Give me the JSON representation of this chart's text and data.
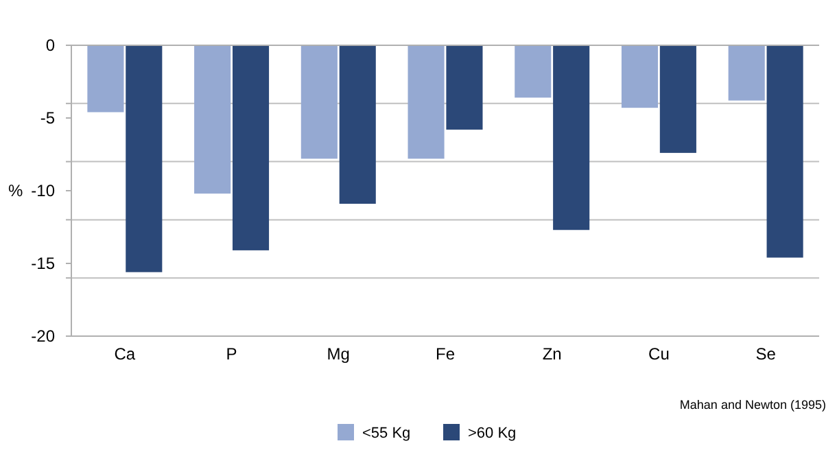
{
  "chart_data": {
    "type": "bar",
    "ylabel": "%",
    "categories": [
      "Ca",
      "P",
      "Mg",
      "Fe",
      "Zn",
      "Cu",
      "Se"
    ],
    "series": [
      {
        "name": "<55 Kg",
        "color": "#95a9d2",
        "values": [
          -4.6,
          -10.2,
          -7.8,
          -7.8,
          -3.6,
          -4.3,
          -3.8
        ]
      },
      {
        "name": ">60 Kg",
        "color": "#2b4878",
        "values": [
          -15.6,
          -14.1,
          -10.9,
          -5.8,
          -12.7,
          -7.4,
          -14.6
        ]
      }
    ],
    "ylim": [
      -20,
      0
    ],
    "yticks": [
      0,
      {
        "value": -4,
        "label": null
      },
      -5,
      {
        "value": -8,
        "label": null
      },
      -10,
      {
        "value": -12,
        "label": null
      },
      -15,
      {
        "value": -16,
        "label": null
      },
      -20
    ],
    "grid": "y",
    "legend": "bottom",
    "annotations": [
      "Mahan and Newton (1995)"
    ]
  }
}
